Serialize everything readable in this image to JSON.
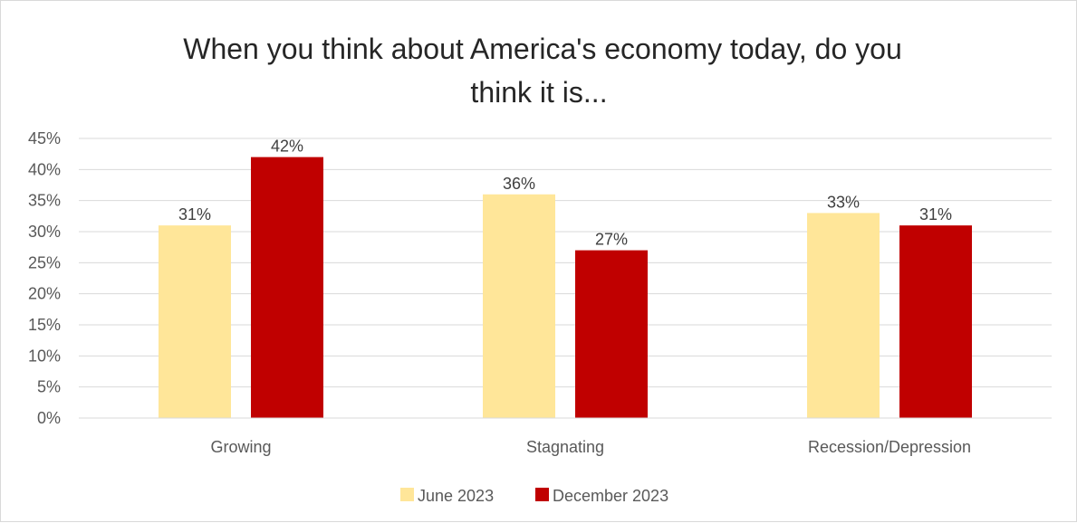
{
  "chart_data": {
    "type": "bar",
    "title_lines": [
      "When you think about America's economy today, do you",
      "think it is..."
    ],
    "categories": [
      "Growing",
      "Stagnating",
      "Recession/Depression"
    ],
    "series": [
      {
        "name": "June 2023",
        "color": "#FFE699",
        "values": [
          31,
          36,
          33
        ],
        "labels": [
          "31%",
          "36%",
          "33%"
        ]
      },
      {
        "name": "December 2023",
        "color": "#C00000",
        "values": [
          42,
          27,
          31
        ],
        "labels": [
          "42%",
          "27%",
          "31%"
        ]
      }
    ],
    "ylim": [
      0,
      45
    ],
    "yticks": [
      "0%",
      "5%",
      "10%",
      "15%",
      "20%",
      "25%",
      "30%",
      "35%",
      "40%",
      "45%"
    ],
    "grid": true,
    "legend_position": "bottom"
  }
}
